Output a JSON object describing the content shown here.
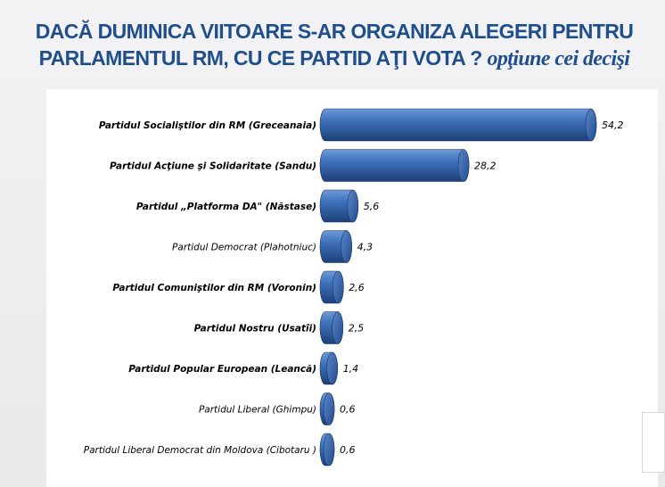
{
  "title": {
    "line1": "DACĂ  DUMINICA VIITOARE S-AR ORGANIZA ALEGERI PENTRU",
    "line2_main": "PARLAMENTUL RM, CU CE PARTID AŢI VOTA ? ",
    "line2_italic": "opţiune  cei decişi"
  },
  "chart_data": {
    "type": "bar",
    "orientation": "horizontal",
    "categories": [
      "Partidul Socialiştilor din RM  (Greceanaia)",
      "Partidul Acţiune şi Solidaritate (Sandu)",
      "Partidul „Platforma DA\" (Năstase)",
      "Partidul Democrat (Plahotniuc)",
      "Partidul Comuniştilor din RM  (Voronin)",
      "Partidul Nostru  (Usatîi)",
      "Partidul Popular European  (Leancă)",
      "Partidul Liberal (Ghimpu)",
      "Partidul Liberal Democrat din Moldova (Cibotaru )"
    ],
    "category_bold": [
      true,
      true,
      true,
      false,
      true,
      true,
      true,
      false,
      false
    ],
    "values": [
      54.2,
      28.2,
      5.6,
      4.3,
      2.6,
      2.5,
      1.4,
      0.6,
      0.6
    ],
    "value_labels": [
      "54,2",
      "28,2",
      "5,6",
      "4,3",
      "2,6",
      "2,5",
      "1,4",
      "0,6",
      "0,6"
    ],
    "xlim": [
      0,
      54.2
    ],
    "grid": false,
    "legend": "none",
    "bar_color": "#3b6cb4",
    "bar_style": "3d-cylinder"
  }
}
